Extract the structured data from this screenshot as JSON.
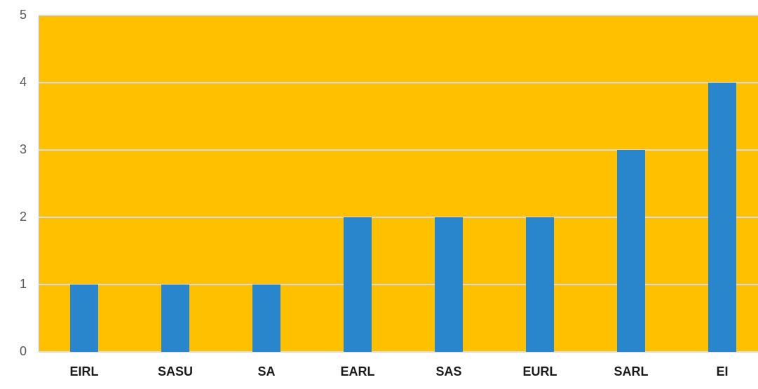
{
  "chart_data": {
    "type": "bar",
    "categories": [
      "EIRL",
      "SASU",
      "SA",
      "EARL",
      "SAS",
      "EURL",
      "SARL",
      "EI"
    ],
    "values": [
      1,
      1,
      1,
      2,
      2,
      2,
      3,
      4
    ],
    "color": "#2a86cc",
    "plot_background": "#ffc000",
    "ylim": [
      0,
      5
    ],
    "yticks": [
      0,
      1,
      2,
      3,
      4,
      5
    ],
    "grid": true
  }
}
